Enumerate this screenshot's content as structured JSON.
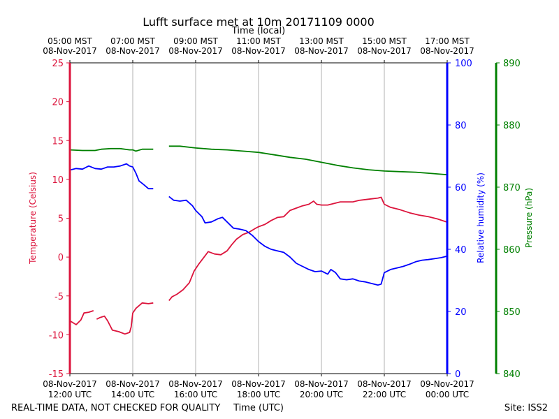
{
  "chart_data": {
    "type": "line",
    "title": "Lufft surface met at 10m 20171109 0000",
    "top_axis_label": "Time (local)",
    "bottom_axis_label": "Time (UTC)",
    "footer_left": "REAL-TIME DATA, NOT CHECKED FOR QUALITY",
    "footer_right": "Site: ISS2",
    "x_range_hours_utc": [
      12,
      24
    ],
    "x_ticks_utc": [
      {
        "hour": 12,
        "line1": "08-Nov-2017",
        "line2": "12:00 UTC"
      },
      {
        "hour": 14,
        "line1": "08-Nov-2017",
        "line2": "14:00 UTC"
      },
      {
        "hour": 16,
        "line1": "08-Nov-2017",
        "line2": "16:00 UTC"
      },
      {
        "hour": 18,
        "line1": "08-Nov-2017",
        "line2": "18:00 UTC"
      },
      {
        "hour": 20,
        "line1": "08-Nov-2017",
        "line2": "20:00 UTC"
      },
      {
        "hour": 22,
        "line1": "08-Nov-2017",
        "line2": "22:00 UTC"
      },
      {
        "hour": 24,
        "line1": "09-Nov-2017",
        "line2": "00:00 UTC"
      }
    ],
    "x_ticks_local": [
      {
        "hour": 12,
        "line1": "05:00 MST",
        "line2": "08-Nov-2017"
      },
      {
        "hour": 14,
        "line1": "07:00 MST",
        "line2": "08-Nov-2017"
      },
      {
        "hour": 16,
        "line1": "09:00 MST",
        "line2": "08-Nov-2017"
      },
      {
        "hour": 18,
        "line1": "11:00 MST",
        "line2": "08-Nov-2017"
      },
      {
        "hour": 20,
        "line1": "13:00 MST",
        "line2": "08-Nov-2017"
      },
      {
        "hour": 22,
        "line1": "15:00 MST",
        "line2": "08-Nov-2017"
      },
      {
        "hour": 24,
        "line1": "17:00 MST",
        "line2": "08-Nov-2017"
      }
    ],
    "grid": "vertical",
    "axes": {
      "temperature": {
        "label": "Temperature (Celsius)",
        "range": [
          -15,
          25
        ],
        "ticks": [
          -15,
          -10,
          -5,
          0,
          5,
          10,
          15,
          20,
          25
        ],
        "color": "#dc143c",
        "side": "left"
      },
      "humidity": {
        "label": "Relative humidity (%)",
        "range": [
          0,
          100
        ],
        "ticks": [
          0,
          20,
          40,
          60,
          80,
          100
        ],
        "color": "#0000ff",
        "side": "right"
      },
      "pressure": {
        "label": "Pressure (hPa)",
        "range": [
          840,
          890
        ],
        "ticks": [
          840,
          850,
          860,
          870,
          880,
          890
        ],
        "color": "#008000",
        "side": "right-outer"
      }
    },
    "series": [
      {
        "name": "Temperature",
        "axis": "temperature",
        "color": "#dc143c",
        "segments": [
          [
            [
              12.0,
              -8.2
            ],
            [
              12.2,
              -8.7
            ],
            [
              12.35,
              -8.1
            ],
            [
              12.45,
              -7.2
            ],
            [
              12.6,
              -7.1
            ],
            [
              12.75,
              -6.9
            ]
          ],
          [
            [
              12.85,
              -8.0
            ],
            [
              12.95,
              -7.8
            ],
            [
              13.1,
              -7.6
            ],
            [
              13.2,
              -8.2
            ],
            [
              13.35,
              -9.4
            ],
            [
              13.55,
              -9.6
            ],
            [
              13.75,
              -9.9
            ],
            [
              13.9,
              -9.7
            ],
            [
              13.95,
              -9.0
            ],
            [
              14.0,
              -7.2
            ],
            [
              14.1,
              -6.6
            ],
            [
              14.3,
              -5.9
            ],
            [
              14.5,
              -6.0
            ],
            [
              14.65,
              -5.9
            ]
          ],
          [
            [
              15.15,
              -5.6
            ],
            [
              15.25,
              -5.1
            ],
            [
              15.4,
              -4.8
            ],
            [
              15.6,
              -4.2
            ],
            [
              15.8,
              -3.3
            ],
            [
              15.95,
              -1.8
            ],
            [
              16.1,
              -0.9
            ],
            [
              16.25,
              -0.1
            ],
            [
              16.4,
              0.7
            ],
            [
              16.6,
              0.4
            ],
            [
              16.8,
              0.3
            ],
            [
              17.0,
              0.8
            ],
            [
              17.15,
              1.6
            ],
            [
              17.3,
              2.3
            ],
            [
              17.5,
              2.9
            ],
            [
              17.7,
              3.2
            ],
            [
              17.9,
              3.7
            ],
            [
              18.0,
              3.9
            ],
            [
              18.2,
              4.2
            ],
            [
              18.4,
              4.7
            ],
            [
              18.6,
              5.1
            ],
            [
              18.8,
              5.2
            ],
            [
              19.0,
              6.0
            ],
            [
              19.2,
              6.3
            ],
            [
              19.4,
              6.6
            ],
            [
              19.6,
              6.8
            ],
            [
              19.75,
              7.2
            ],
            [
              19.85,
              6.8
            ],
            [
              20.0,
              6.7
            ],
            [
              20.2,
              6.7
            ],
            [
              20.4,
              6.9
            ],
            [
              20.6,
              7.1
            ],
            [
              20.8,
              7.1
            ],
            [
              21.0,
              7.1
            ],
            [
              21.2,
              7.3
            ],
            [
              21.4,
              7.4
            ],
            [
              21.6,
              7.5
            ],
            [
              21.8,
              7.6
            ],
            [
              21.9,
              7.7
            ],
            [
              22.0,
              6.8
            ],
            [
              22.2,
              6.4
            ],
            [
              22.5,
              6.1
            ],
            [
              22.8,
              5.7
            ],
            [
              23.1,
              5.4
            ],
            [
              23.4,
              5.2
            ],
            [
              23.7,
              4.9
            ],
            [
              24.0,
              4.5
            ]
          ]
        ]
      },
      {
        "name": "Relative humidity",
        "axis": "humidity",
        "color": "#0000ff",
        "segments": [
          [
            [
              12.0,
              65.5
            ],
            [
              12.2,
              66.0
            ],
            [
              12.4,
              65.8
            ],
            [
              12.6,
              66.8
            ],
            [
              12.8,
              66.0
            ],
            [
              13.0,
              65.8
            ],
            [
              13.2,
              66.5
            ],
            [
              13.4,
              66.5
            ],
            [
              13.6,
              66.8
            ],
            [
              13.8,
              67.5
            ],
            [
              13.9,
              66.8
            ],
            [
              14.0,
              66.5
            ],
            [
              14.1,
              64.5
            ],
            [
              14.2,
              62.0
            ],
            [
              14.35,
              60.8
            ],
            [
              14.5,
              59.5
            ],
            [
              14.65,
              59.5
            ]
          ],
          [
            [
              15.15,
              57.0
            ],
            [
              15.3,
              55.8
            ],
            [
              15.5,
              55.5
            ],
            [
              15.7,
              55.8
            ],
            [
              15.9,
              54.0
            ],
            [
              16.0,
              52.5
            ],
            [
              16.2,
              50.5
            ],
            [
              16.3,
              48.5
            ],
            [
              16.5,
              48.8
            ],
            [
              16.7,
              49.8
            ],
            [
              16.85,
              50.3
            ],
            [
              17.0,
              48.8
            ],
            [
              17.2,
              46.8
            ],
            [
              17.4,
              46.5
            ],
            [
              17.6,
              46.0
            ],
            [
              17.8,
              44.5
            ],
            [
              18.0,
              42.5
            ],
            [
              18.2,
              41.0
            ],
            [
              18.4,
              40.0
            ],
            [
              18.6,
              39.5
            ],
            [
              18.8,
              39.0
            ],
            [
              19.0,
              37.5
            ],
            [
              19.2,
              35.5
            ],
            [
              19.4,
              34.5
            ],
            [
              19.6,
              33.5
            ],
            [
              19.8,
              32.8
            ],
            [
              20.0,
              33.0
            ],
            [
              20.2,
              32.0
            ],
            [
              20.3,
              33.5
            ],
            [
              20.45,
              32.5
            ],
            [
              20.6,
              30.5
            ],
            [
              20.8,
              30.2
            ],
            [
              21.0,
              30.5
            ],
            [
              21.2,
              29.8
            ],
            [
              21.4,
              29.5
            ],
            [
              21.6,
              29.0
            ],
            [
              21.8,
              28.5
            ],
            [
              21.9,
              28.8
            ],
            [
              22.0,
              32.5
            ],
            [
              22.2,
              33.5
            ],
            [
              22.4,
              34.0
            ],
            [
              22.6,
              34.5
            ],
            [
              22.8,
              35.2
            ],
            [
              23.0,
              36.0
            ],
            [
              23.2,
              36.5
            ],
            [
              23.4,
              36.7
            ],
            [
              23.6,
              37.0
            ],
            [
              23.8,
              37.3
            ],
            [
              24.0,
              37.8
            ]
          ]
        ]
      },
      {
        "name": "Pressure",
        "axis": "pressure",
        "color": "#008000",
        "segments": [
          [
            [
              12.0,
              876.0
            ],
            [
              12.4,
              875.9
            ],
            [
              12.8,
              875.9
            ],
            [
              13.0,
              876.1
            ],
            [
              13.3,
              876.2
            ],
            [
              13.6,
              876.2
            ],
            [
              13.9,
              876.0
            ],
            [
              14.0,
              876.0
            ],
            [
              14.1,
              875.8
            ],
            [
              14.3,
              876.1
            ],
            [
              14.65,
              876.1
            ]
          ],
          [
            [
              15.15,
              876.6
            ],
            [
              15.5,
              876.6
            ],
            [
              16.0,
              876.3
            ],
            [
              16.5,
              876.1
            ],
            [
              17.0,
              876.0
            ],
            [
              17.5,
              875.8
            ],
            [
              18.0,
              875.6
            ],
            [
              18.5,
              875.2
            ],
            [
              19.0,
              874.8
            ],
            [
              19.5,
              874.5
            ],
            [
              20.0,
              874.0
            ],
            [
              20.5,
              873.5
            ],
            [
              21.0,
              873.1
            ],
            [
              21.5,
              872.8
            ],
            [
              22.0,
              872.6
            ],
            [
              22.5,
              872.5
            ],
            [
              23.0,
              872.4
            ],
            [
              23.5,
              872.2
            ],
            [
              24.0,
              872.0
            ]
          ]
        ]
      }
    ]
  }
}
